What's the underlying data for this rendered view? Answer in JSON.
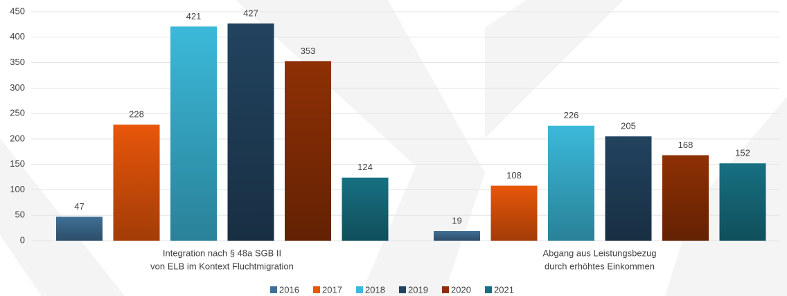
{
  "chart_data": {
    "type": "bar",
    "categories": [
      [
        "Integration nach § 48a SGB II",
        "von ELB im Kontext Fluchtmigration"
      ],
      [
        "Abgang aus Leistungsbezug",
        "durch erhöhtes Einkommen"
      ]
    ],
    "series": [
      {
        "name": "2016",
        "color": "#3f6f96",
        "values": [
          47,
          19
        ]
      },
      {
        "name": "2017",
        "color": "#e8560a",
        "values": [
          228,
          108
        ]
      },
      {
        "name": "2018",
        "color": "#3bb9d9",
        "values": [
          421,
          226
        ]
      },
      {
        "name": "2019",
        "color": "#22435f",
        "values": [
          427,
          205
        ]
      },
      {
        "name": "2020",
        "color": "#8e3005",
        "values": [
          353,
          168
        ]
      },
      {
        "name": "2021",
        "color": "#177082",
        "values": [
          124,
          152
        ]
      }
    ],
    "ylim": [
      0,
      450
    ],
    "yticks": [
      0,
      50,
      100,
      150,
      200,
      250,
      300,
      350,
      400,
      450
    ],
    "grid": true,
    "legend": "bottom"
  }
}
